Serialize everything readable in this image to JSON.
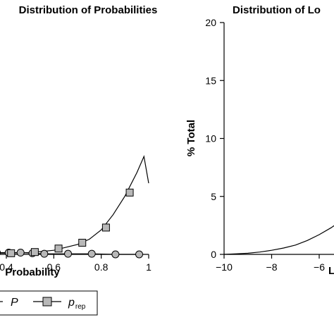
{
  "chart_data": [
    {
      "type": "line",
      "title": "Distribution of Probabilities",
      "xlabel": "Probability",
      "ylabel": "",
      "xlim": [
        0.0,
        1.0
      ],
      "x_ticks": [
        "0.4",
        "0.6",
        "0.8",
        "1"
      ],
      "x_tick_values": [
        0.4,
        0.6,
        0.8,
        1.0
      ],
      "ylim": [
        0,
        20
      ],
      "grid": false,
      "legend_position": "bottom",
      "series": [
        {
          "name": "P",
          "marker": "circle",
          "x": [
            0.31,
            0.36,
            0.41,
            0.46,
            0.51,
            0.56,
            0.66,
            0.76,
            0.86,
            0.96
          ],
          "values": [
            0.2,
            0.15,
            0.15,
            0.15,
            0.1,
            0.05,
            0.05,
            0.05,
            0.0,
            0.0
          ]
        },
        {
          "name": "p_rep",
          "marker": "square",
          "x": [
            0.32,
            0.34,
            0.42,
            0.52,
            0.62,
            0.72,
            0.82,
            0.92
          ],
          "values": [
            0.2,
            0.05,
            0.1,
            0.2,
            0.5,
            1.0,
            2.3,
            5.3
          ],
          "curve_x": [
            0.3,
            0.4,
            0.5,
            0.6,
            0.7,
            0.75,
            0.8,
            0.85,
            0.9,
            0.95,
            0.98,
            1.0
          ],
          "curve_values": [
            0.1,
            0.1,
            0.15,
            0.35,
            0.85,
            1.3,
            2.1,
            3.4,
            5.0,
            7.0,
            8.4,
            6.1
          ]
        }
      ],
      "legend": {
        "entries": [
          {
            "text": "P"
          },
          {
            "text": "p",
            "subscript": "rep"
          }
        ]
      }
    },
    {
      "type": "area",
      "title": "Distribution of Lo",
      "xlabel": "L",
      "ylabel": "% Total",
      "xlim": [
        -10,
        -4.6
      ],
      "x_ticks": [
        "−10",
        "−8",
        "−6"
      ],
      "x_tick_values": [
        -10,
        -8,
        -6
      ],
      "ylim": [
        0,
        20
      ],
      "y_ticks": [
        "0",
        "5",
        "10",
        "15",
        "20"
      ],
      "y_tick_values": [
        0,
        5,
        10,
        15,
        20
      ],
      "grid": false,
      "series": [
        {
          "x": [
            -10,
            -9.5,
            -9,
            -8.5,
            -8,
            -7.5,
            -7,
            -6.5,
            -6,
            -5.5,
            -5,
            -4.6
          ],
          "values": [
            0.0,
            0.05,
            0.1,
            0.2,
            0.35,
            0.55,
            0.8,
            1.2,
            1.7,
            2.3,
            3.0,
            3.6
          ]
        }
      ]
    }
  ]
}
